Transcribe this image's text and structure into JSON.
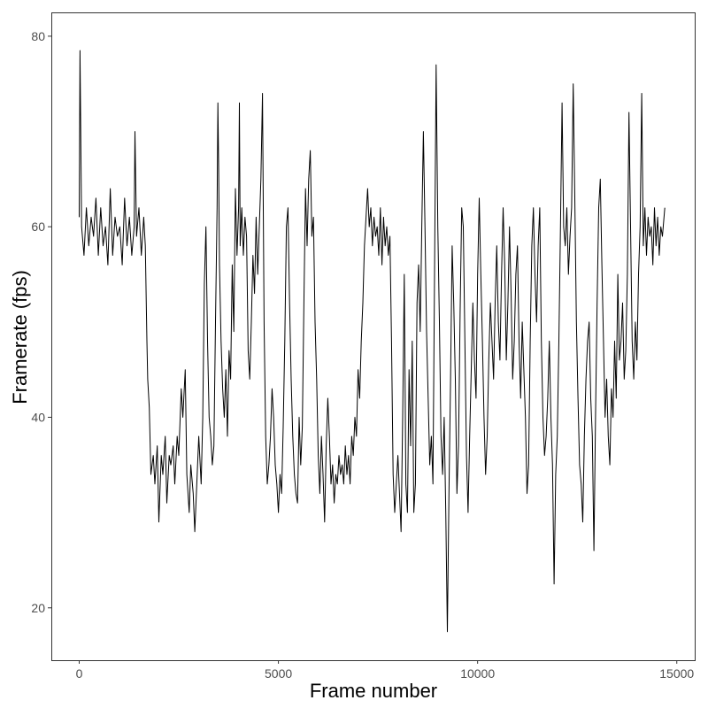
{
  "chart_data": {
    "type": "line",
    "title": "",
    "xlabel": "Frame number",
    "ylabel": "Framerate (fps)",
    "xlim": [
      -700,
      15450
    ],
    "ylim": [
      14.5,
      82.5
    ],
    "x_ticks": [
      0,
      5000,
      10000,
      15000
    ],
    "x_tick_labels": [
      "0",
      "5000",
      "10000",
      "15000"
    ],
    "y_ticks": [
      20,
      40,
      60,
      80
    ],
    "y_tick_labels": [
      "20",
      "40",
      "60",
      "80"
    ],
    "grid": false,
    "legend": "none",
    "line_color": "#000000",
    "series": [
      {
        "x": [
          0,
          20,
          60,
          120,
          180,
          240,
          300,
          360,
          420,
          480,
          540,
          600,
          660,
          720,
          780,
          840,
          900,
          960,
          1020,
          1080,
          1140,
          1200,
          1260,
          1320,
          1380,
          1400,
          1440,
          1500,
          1560,
          1620,
          1660,
          1700,
          1720,
          1760,
          1800,
          1860,
          1900,
          1960,
          2000,
          2060,
          2100,
          2160,
          2200,
          2260,
          2300,
          2360,
          2400,
          2460,
          2500,
          2560,
          2600,
          2660,
          2700,
          2760,
          2800,
          2860,
          2900,
          2960,
          3000,
          3060,
          3100,
          3140,
          3180,
          3220,
          3260,
          3300,
          3340,
          3380,
          3420,
          3460,
          3480,
          3500,
          3520,
          3560,
          3600,
          3640,
          3680,
          3720,
          3760,
          3800,
          3840,
          3880,
          3920,
          3960,
          4000,
          4020,
          4040,
          4080,
          4120,
          4160,
          4200,
          4240,
          4280,
          4320,
          4360,
          4400,
          4440,
          4480,
          4520,
          4560,
          4600,
          4620,
          4640,
          4680,
          4720,
          4760,
          4800,
          4840,
          4880,
          4920,
          4960,
          5000,
          5040,
          5080,
          5120,
          5160,
          5200,
          5240,
          5280,
          5320,
          5360,
          5400,
          5440,
          5480,
          5520,
          5560,
          5600,
          5640,
          5680,
          5720,
          5760,
          5800,
          5840,
          5880,
          5920,
          5960,
          6000,
          6040,
          6080,
          6120,
          6160,
          6200,
          6240,
          6280,
          6320,
          6360,
          6400,
          6440,
          6480,
          6520,
          6560,
          6600,
          6640,
          6680,
          6720,
          6760,
          6800,
          6840,
          6880,
          6920,
          6960,
          7000,
          7040,
          7080,
          7120,
          7160,
          7200,
          7240,
          7280,
          7320,
          7360,
          7400,
          7440,
          7480,
          7520,
          7560,
          7600,
          7640,
          7680,
          7720,
          7760,
          7800,
          7840,
          7880,
          7920,
          7960,
          8000,
          8040,
          8080,
          8120,
          8160,
          8200,
          8240,
          8280,
          8320,
          8360,
          8400,
          8440,
          8480,
          8520,
          8560,
          8600,
          8640,
          8680,
          8720,
          8760,
          8800,
          8840,
          8880,
          8920,
          8960,
          9000,
          9040,
          9080,
          9120,
          9160,
          9200,
          9240,
          9280,
          9320,
          9360,
          9400,
          9440,
          9480,
          9520,
          9560,
          9600,
          9640,
          9680,
          9720,
          9760,
          9800,
          9840,
          9880,
          9920,
          9960,
          10000,
          10040,
          10080,
          10120,
          10160,
          10200,
          10240,
          10280,
          10320,
          10360,
          10400,
          10440,
          10480,
          10520,
          10560,
          10600,
          10640,
          10680,
          10720,
          10760,
          10800,
          10840,
          10880,
          10920,
          10960,
          11000,
          11040,
          11080,
          11120,
          11160,
          11200,
          11240,
          11280,
          11320,
          11360,
          11400,
          11440,
          11480,
          11520,
          11560,
          11600,
          11640,
          11680,
          11720,
          11760,
          11800,
          11840,
          11880,
          11920,
          11960,
          12000,
          12040,
          12080,
          12120,
          12160,
          12200,
          12240,
          12280,
          12320,
          12360,
          12400,
          12440,
          12480,
          12520,
          12560,
          12600,
          12640,
          12680,
          12720,
          12760,
          12800,
          12840,
          12880,
          12920,
          12960,
          13000,
          13040,
          13080,
          13120,
          13160,
          13200,
          13240,
          13280,
          13320,
          13360,
          13400,
          13440,
          13480,
          13520,
          13560,
          13600,
          13640,
          13680,
          13720,
          13760,
          13800,
          13840,
          13880,
          13920,
          13960,
          14000,
          14040,
          14080,
          14120,
          14160,
          14200,
          14240,
          14280,
          14320,
          14360,
          14400,
          14440,
          14480,
          14520,
          14560,
          14600,
          14640,
          14700
        ],
        "y": [
          61,
          78.5,
          60,
          57,
          62,
          58,
          61,
          59,
          63,
          57,
          62,
          58,
          60,
          56,
          64,
          57,
          61,
          59,
          60,
          56,
          63,
          58,
          61,
          57,
          60,
          70,
          59,
          62,
          57,
          61,
          58,
          48,
          44,
          41,
          34,
          36,
          33,
          37,
          29,
          36,
          34,
          38,
          31,
          36,
          35,
          37,
          33,
          38,
          36,
          43,
          40,
          45,
          34,
          30,
          35,
          32,
          28,
          34,
          38,
          33,
          40,
          54,
          60,
          48,
          40,
          38,
          35,
          37,
          50,
          62,
          73,
          66,
          56,
          48,
          43,
          40,
          45,
          38,
          47,
          44,
          56,
          49,
          64,
          57,
          62,
          73,
          58,
          62,
          57,
          61,
          59,
          47,
          44,
          50,
          57,
          53,
          61,
          55,
          60,
          65,
          74,
          62,
          50,
          38,
          33,
          35,
          38,
          43,
          40,
          35,
          33,
          30,
          34,
          32,
          39,
          48,
          60,
          62,
          52,
          44,
          38,
          34,
          32,
          31,
          40,
          35,
          39,
          52,
          64,
          58,
          65,
          68,
          59,
          61,
          50,
          44,
          36,
          32,
          38,
          34,
          29,
          37,
          42,
          38,
          33,
          35,
          31,
          34,
          33,
          36,
          34,
          35,
          33,
          37,
          34,
          36,
          33,
          38,
          36,
          40,
          38,
          45,
          42,
          48,
          52,
          58,
          61,
          64,
          60,
          62,
          58,
          61,
          59,
          60,
          57,
          62,
          56,
          61,
          58,
          60,
          57,
          59,
          48,
          34,
          30,
          33,
          36,
          32,
          28,
          40,
          55,
          33,
          30,
          45,
          37,
          48,
          30,
          33,
          52,
          56,
          49,
          60,
          70,
          60,
          49,
          42,
          35,
          38,
          33,
          55,
          77,
          60,
          50,
          38,
          34,
          40,
          30,
          17.5,
          32,
          44,
          58,
          52,
          44,
          32,
          37,
          51,
          62,
          60,
          48,
          36,
          30,
          38,
          45,
          52,
          46,
          42,
          55,
          63,
          55,
          48,
          40,
          34,
          38,
          46,
          52,
          48,
          44,
          52,
          58,
          50,
          46,
          55,
          62,
          56,
          46,
          52,
          60,
          53,
          44,
          48,
          55,
          58,
          48,
          42,
          50,
          45,
          40,
          32,
          35,
          48,
          58,
          62,
          55,
          50,
          58,
          62,
          48,
          40,
          36,
          38,
          42,
          48,
          40,
          35,
          22.5,
          34,
          38,
          48,
          60,
          73,
          60,
          58,
          62,
          55,
          59,
          62,
          75,
          63,
          50,
          42,
          35,
          33,
          29,
          38,
          44,
          48,
          50,
          42,
          38,
          26,
          40,
          52,
          62,
          65,
          56,
          48,
          40,
          44,
          38,
          35,
          43,
          40,
          48,
          42,
          55,
          46,
          48,
          52,
          44,
          47,
          55,
          72,
          60,
          48,
          44,
          50,
          46,
          55,
          60,
          74,
          58,
          62,
          57,
          61,
          59,
          60,
          56,
          62,
          58,
          61,
          57,
          60,
          59,
          62
        ]
      }
    ]
  }
}
